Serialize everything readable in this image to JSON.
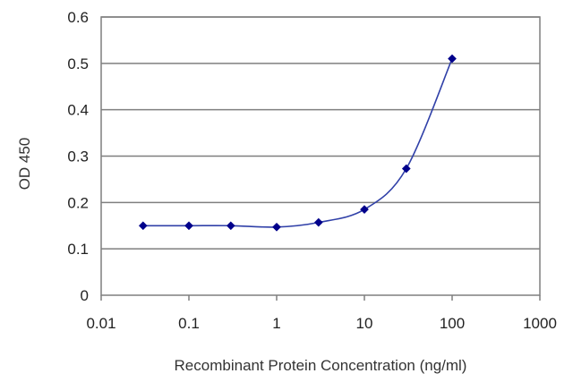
{
  "chart_data": {
    "type": "scatter",
    "title": "",
    "xlabel": "Recombinant Protein Concentration (ng/ml)",
    "ylabel": "OD 450",
    "x_scale": "log",
    "xlim": [
      0.01,
      1000
    ],
    "ylim": [
      0,
      0.6
    ],
    "x_ticks": [
      0.01,
      0.1,
      1,
      10,
      100,
      1000
    ],
    "x_tick_labels": [
      "0.01",
      "0.1",
      "1",
      "10",
      "100",
      "1000"
    ],
    "y_ticks": [
      0,
      0.1,
      0.2,
      0.3,
      0.4,
      0.5,
      0.6
    ],
    "y_tick_labels": [
      "0",
      "0.1",
      "0.2",
      "0.3",
      "0.4",
      "0.5",
      "0.6"
    ],
    "grid": "horizontal",
    "legend": "none",
    "series": [
      {
        "color": "#3040a8",
        "marker_color": "#00008b",
        "curve": "smooth",
        "x": [
          0.03,
          0.1,
          0.3,
          1,
          3,
          10,
          30,
          100
        ],
        "y": [
          0.15,
          0.15,
          0.15,
          0.147,
          0.157,
          0.185,
          0.273,
          0.51
        ]
      }
    ]
  }
}
